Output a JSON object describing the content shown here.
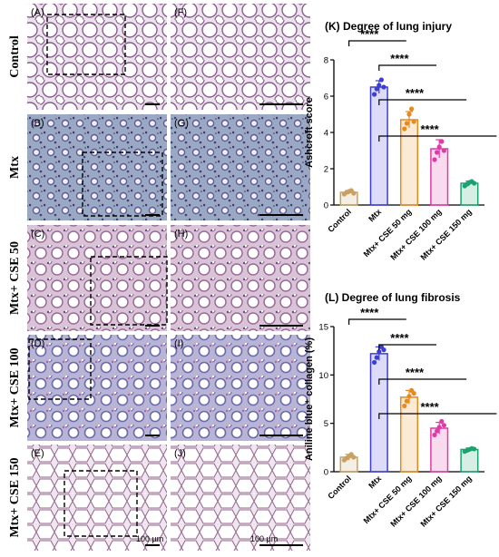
{
  "panels": {
    "row_labels": [
      "Control",
      "Mtx",
      "Mtx+ CSE  50",
      "Mtx+ CSE 100",
      "Mtx+ CSE 150"
    ],
    "left_labels": [
      "(A)",
      "(B)",
      "(C)",
      "(D)",
      "(E)"
    ],
    "right_labels": [
      "(F)",
      "(G)",
      "(H)",
      "(I)",
      "(J)"
    ],
    "scale_bar_label": "100 µm",
    "tissue_colors": {
      "Control": "#ece4ec",
      "Mtx": "#9aa8c4",
      "Mtx+ CSE  50": "#d8c4d6",
      "Mtx+ CSE 100": "#b7b4d6",
      "Mtx+ CSE 150": "#efe7ef"
    }
  },
  "chart_data": [
    {
      "type": "bar",
      "title": "(K) Degree of lung injury",
      "xlabel": "",
      "ylabel": "Ashcroft score",
      "ylim": [
        0,
        8
      ],
      "yticks": [
        0,
        2,
        4,
        6,
        8
      ],
      "categories": [
        "Control",
        "Mtx",
        "Mtx+ CSE 50 mg",
        "Mtx+ CSE 100 mg",
        "Mtx+ CSE 150 mg"
      ],
      "values": [
        0.7,
        6.5,
        4.7,
        3.1,
        1.2
      ],
      "errors": [
        0.1,
        0.35,
        0.45,
        0.5,
        0.12
      ],
      "points": [
        [
          0.6,
          0.7,
          0.75,
          0.8,
          0.65
        ],
        [
          6.1,
          6.4,
          6.6,
          6.9,
          6.5
        ],
        [
          4.2,
          4.5,
          5.0,
          5.3,
          4.6
        ],
        [
          2.5,
          2.9,
          3.2,
          3.5,
          3.0
        ],
        [
          1.05,
          1.15,
          1.25,
          1.3,
          1.2
        ]
      ],
      "colors": [
        "#c9a060",
        "#3d3dd8",
        "#e8891e",
        "#e03aa6",
        "#1aa36f"
      ],
      "significance": [
        "****",
        "****",
        "****",
        "****"
      ]
    },
    {
      "type": "bar",
      "title": "(L) Degree of lung fibrosis",
      "xlabel": "",
      "ylabel": "Aniline blue⁺ collagen (%)",
      "ylim": [
        0,
        15
      ],
      "yticks": [
        0,
        5,
        10,
        15
      ],
      "categories": [
        "Control",
        "Mtx",
        "Mtx+ CSE 50 mg",
        "Mtx+ CSE 100 mg",
        "Mtx+ CSE 150 mg"
      ],
      "values": [
        1.5,
        12.2,
        7.7,
        4.5,
        2.3
      ],
      "errors": [
        0.3,
        0.7,
        0.7,
        0.6,
        0.15
      ],
      "points": [
        [
          1.2,
          1.4,
          1.6,
          1.8,
          1.5
        ],
        [
          11.3,
          11.8,
          12.4,
          12.9,
          12.6
        ],
        [
          6.8,
          7.3,
          7.8,
          8.4,
          8.1
        ],
        [
          3.8,
          4.2,
          4.6,
          5.2,
          4.8
        ],
        [
          2.1,
          2.2,
          2.3,
          2.4,
          2.35
        ]
      ],
      "colors": [
        "#c9a060",
        "#3d3dd8",
        "#e8891e",
        "#e03aa6",
        "#1aa36f"
      ],
      "significance": [
        "****",
        "****",
        "****",
        "****"
      ]
    }
  ]
}
